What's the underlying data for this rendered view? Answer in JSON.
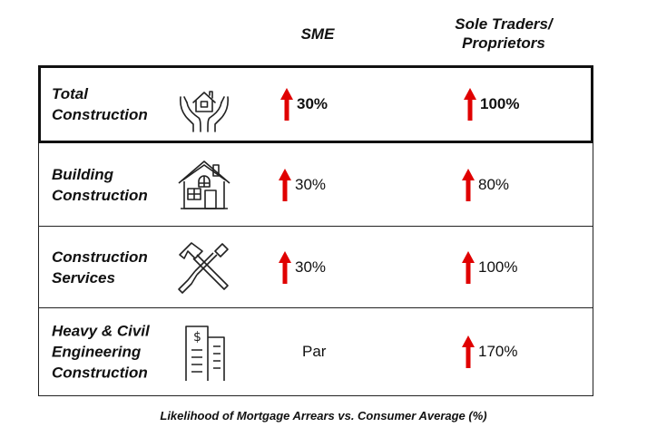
{
  "headers": {
    "sme": "SME",
    "sole_line1": "Sole Traders/",
    "sole_line2": "Proprietors"
  },
  "rows": [
    {
      "label_lines": [
        "Total",
        "Construction"
      ],
      "icon": "hands-house-icon",
      "sme": {
        "value": "30%",
        "arrow": "up"
      },
      "sole": {
        "value": "100%",
        "arrow": "up"
      },
      "highlighted": true
    },
    {
      "label_lines": [
        "Building",
        "Construction"
      ],
      "icon": "house-icon",
      "sme": {
        "value": "30%",
        "arrow": "up"
      },
      "sole": {
        "value": "80%",
        "arrow": "up"
      }
    },
    {
      "label_lines": [
        "Construction",
        "Services"
      ],
      "icon": "hammer-screwdriver-icon",
      "sme": {
        "value": "30%",
        "arrow": "up"
      },
      "sole": {
        "value": "100%",
        "arrow": "up"
      }
    },
    {
      "label_lines": [
        "Heavy & Civil",
        "Engineering",
        "Construction"
      ],
      "icon": "office-building-dollar-icon",
      "sme": {
        "value": "Par",
        "arrow": "none"
      },
      "sole": {
        "value": "170%",
        "arrow": "up"
      }
    }
  ],
  "footer": "Likelihood of Mortgage Arrears vs. Consumer Average (%)",
  "colors": {
    "arrow": "#e00000",
    "border": "#111111"
  }
}
